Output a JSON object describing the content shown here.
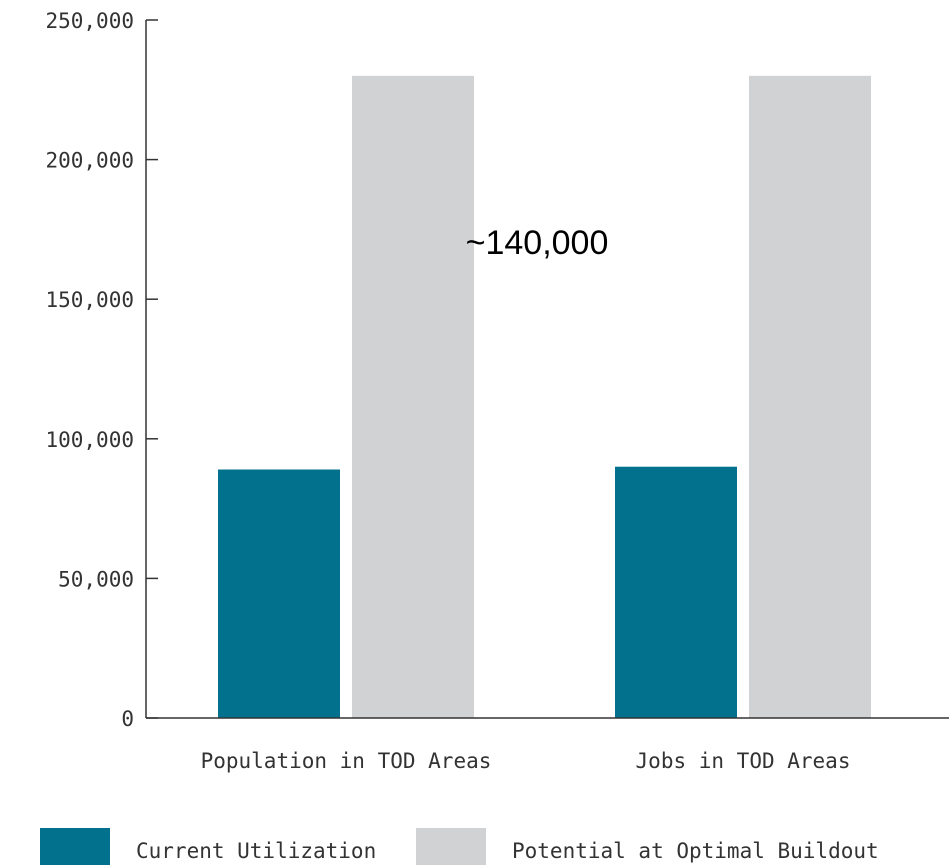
{
  "chart_data": {
    "type": "bar",
    "categories": [
      "Population in TOD Areas",
      "Jobs in TOD Areas"
    ],
    "series": [
      {
        "name": "Current Utilization",
        "values": [
          89000,
          90000
        ],
        "color": "#02718e"
      },
      {
        "name": "Potential at Optimal Buildout",
        "values": [
          230000,
          230000
        ],
        "color": "#d1d2d4"
      }
    ],
    "ylim": [
      0,
      250000
    ],
    "yticks": [
      0,
      50000,
      100000,
      150000,
      200000,
      250000
    ],
    "ytick_labels": [
      "0",
      "50,000",
      "100,000",
      "150,000",
      "200,000",
      "250,000"
    ],
    "annotation": "~140,000",
    "legend_position": "bottom",
    "grid": false
  }
}
